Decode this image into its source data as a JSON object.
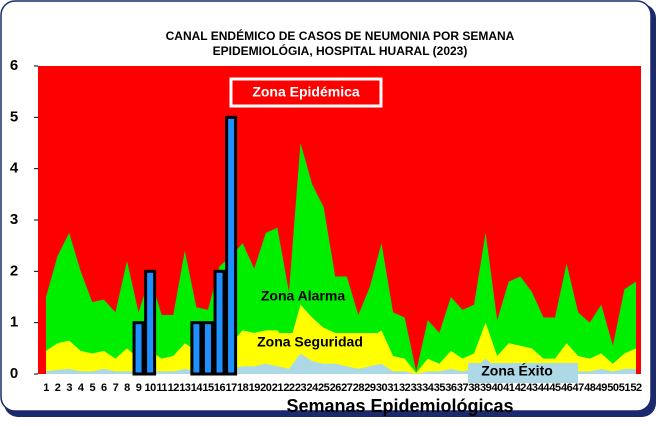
{
  "chart_data": {
    "type": "endemic",
    "title": [
      "CANAL ENDÉMICO DE CASOS DE NEUMONIA POR SEMANA",
      "EPIDEMIOLÓGIA, HOSPITAL HUARAL (2023)"
    ],
    "x_label": "Semanas Epidemiológicas",
    "categories": [
      1,
      2,
      3,
      4,
      5,
      6,
      7,
      8,
      9,
      10,
      11,
      12,
      13,
      14,
      15,
      16,
      17,
      18,
      19,
      20,
      21,
      22,
      23,
      24,
      25,
      26,
      27,
      28,
      29,
      30,
      31,
      32,
      33,
      34,
      35,
      36,
      37,
      38,
      39,
      40,
      41,
      42,
      43,
      44,
      45,
      46,
      47,
      48,
      49,
      50,
      51,
      52
    ],
    "ylim": [
      0,
      6
    ],
    "yticks": [
      0,
      1,
      2,
      3,
      4,
      5,
      6
    ],
    "epidemic_zone": {
      "name": "Zona Epidémica",
      "color": "#ff0000"
    },
    "series": [
      {
        "name": "Zona Alarma",
        "color": "#00ee00",
        "values": [
          1.5,
          2.3,
          2.75,
          2.0,
          1.4,
          1.45,
          1.2,
          2.2,
          1.2,
          1.9,
          1.15,
          1.15,
          2.4,
          1.3,
          1.25,
          2.1,
          2.3,
          2.55,
          2.05,
          2.75,
          2.85,
          1.6,
          4.5,
          3.7,
          3.25,
          1.9,
          1.9,
          1.15,
          1.7,
          2.55,
          1.2,
          1.1,
          0.05,
          1.05,
          0.8,
          1.5,
          1.25,
          1.35,
          2.75,
          1.05,
          1.8,
          1.9,
          1.6,
          1.1,
          1.1,
          2.15,
          1.2,
          1.0,
          1.35,
          0.55,
          1.65,
          1.8
        ]
      },
      {
        "name": "Zona Seguridad",
        "color": "#ffff00",
        "values": [
          0.45,
          0.6,
          0.65,
          0.45,
          0.4,
          0.45,
          0.3,
          0.5,
          0.3,
          0.45,
          0.3,
          0.35,
          0.6,
          0.45,
          0.4,
          0.55,
          0.6,
          0.85,
          0.8,
          0.85,
          0.85,
          0.55,
          1.35,
          1.1,
          0.9,
          0.8,
          0.75,
          0.5,
          0.7,
          0.85,
          0.35,
          0.3,
          0.02,
          0.3,
          0.2,
          0.45,
          0.3,
          0.4,
          1.0,
          0.35,
          0.6,
          0.55,
          0.5,
          0.3,
          0.3,
          0.6,
          0.35,
          0.3,
          0.4,
          0.2,
          0.4,
          0.5
        ]
      },
      {
        "name": "Zona Éxito",
        "color": "#add8e6",
        "values": [
          0.05,
          0.08,
          0.1,
          0.05,
          0.05,
          0.1,
          0.05,
          0.05,
          0.05,
          0.05,
          0.05,
          0.05,
          0.1,
          0.05,
          0.05,
          0.1,
          0.1,
          0.15,
          0.15,
          0.2,
          0.15,
          0.1,
          0.4,
          0.25,
          0.2,
          0.2,
          0.15,
          0.1,
          0.15,
          0.2,
          0.05,
          0.05,
          0,
          0.05,
          0.05,
          0.1,
          0.05,
          0.1,
          0.3,
          0.1,
          0.15,
          0.1,
          0.1,
          0.05,
          0.05,
          0.15,
          0.05,
          0.05,
          0.1,
          0.05,
          0.1,
          0.1
        ]
      }
    ],
    "cases": {
      "color": "#1e90ff",
      "values": [
        0,
        0,
        0,
        0,
        0,
        0,
        0,
        0,
        1,
        2,
        0,
        0,
        0,
        1,
        1,
        2,
        5,
        0,
        0,
        0,
        0,
        0,
        0,
        0,
        0,
        0,
        0,
        0,
        0,
        0,
        0,
        0,
        0,
        0,
        0,
        0,
        0,
        0,
        0,
        0,
        0,
        0,
        0,
        0,
        0,
        0,
        0,
        0,
        0,
        0,
        0,
        0
      ]
    }
  }
}
